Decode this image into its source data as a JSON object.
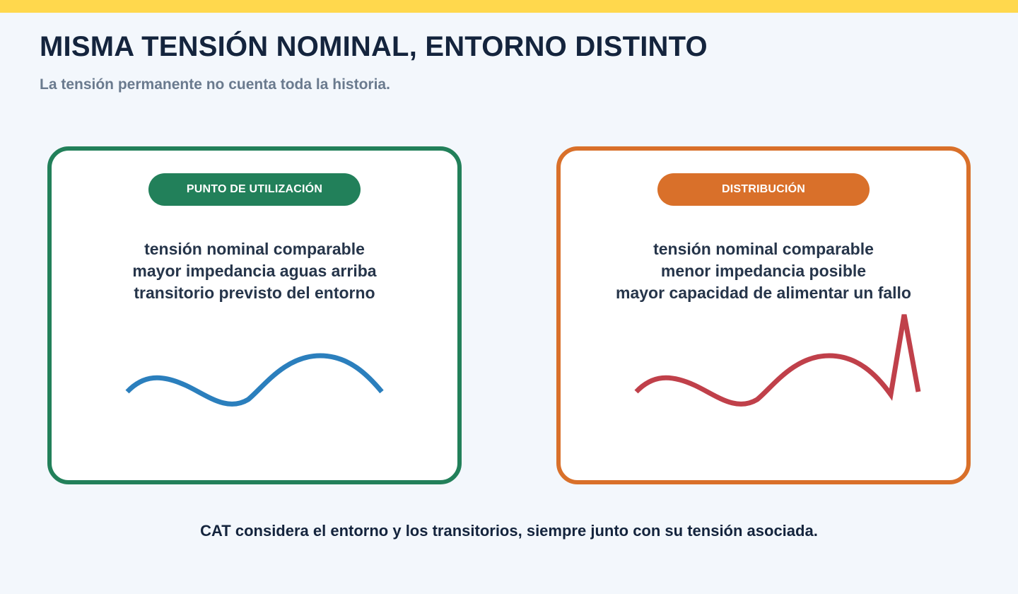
{
  "header": {
    "title": "MISMA TENSIÓN NOMINAL, ENTORNO DISTINTO",
    "subtitle": "La tensión permanente no cuenta toda la historia.",
    "accent_color": "#ffd84d"
  },
  "panels": [
    {
      "label": "PUNTO DE UTILIZACIÓN",
      "color": "#22805a",
      "lines": [
        "tensión nominal comparable",
        "mayor impedancia aguas arriba",
        "transitorio previsto del entorno"
      ],
      "wave_color": "#2b7fbd",
      "wave_has_spike": false
    },
    {
      "label": "DISTRIBUCIÓN",
      "color": "#d9702a",
      "lines": [
        "tensión nominal comparable",
        "menor impedancia posible",
        "mayor capacidad de alimentar un fallo"
      ],
      "wave_color": "#c0404a",
      "wave_has_spike": true
    }
  ],
  "footer": {
    "text": "CAT considera el entorno y los transitorios, siempre junto con su tensión asociada."
  }
}
